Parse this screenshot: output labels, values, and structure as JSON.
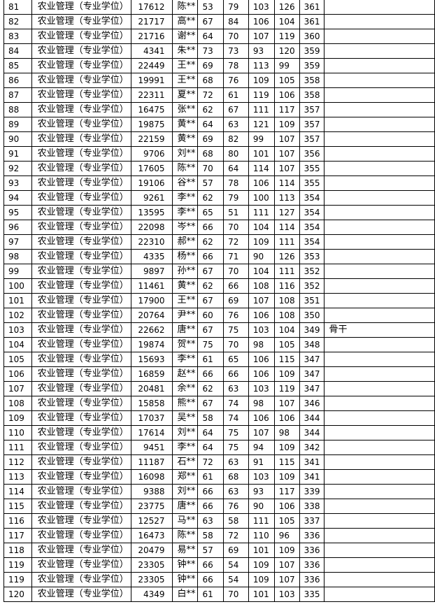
{
  "table": {
    "rows": [
      [
        "81",
        "农业管理（专业学位）",
        "17612",
        "陈**",
        "53",
        "79",
        "103",
        "126",
        "361",
        ""
      ],
      [
        "82",
        "农业管理（专业学位）",
        "21717",
        "高**",
        "67",
        "84",
        "106",
        "104",
        "361",
        ""
      ],
      [
        "83",
        "农业管理（专业学位）",
        "21716",
        "谢**",
        "64",
        "70",
        "107",
        "119",
        "360",
        ""
      ],
      [
        "84",
        "农业管理（专业学位）",
        "4341",
        "朱**",
        "73",
        "73",
        "93",
        "120",
        "359",
        ""
      ],
      [
        "85",
        "农业管理（专业学位）",
        "22449",
        "王**",
        "69",
        "78",
        "113",
        "99",
        "359",
        ""
      ],
      [
        "86",
        "农业管理（专业学位）",
        "19991",
        "王**",
        "68",
        "76",
        "109",
        "105",
        "358",
        ""
      ],
      [
        "87",
        "农业管理（专业学位）",
        "22311",
        "夏**",
        "72",
        "61",
        "119",
        "106",
        "358",
        ""
      ],
      [
        "88",
        "农业管理（专业学位）",
        "16475",
        "张**",
        "62",
        "67",
        "111",
        "117",
        "357",
        ""
      ],
      [
        "89",
        "农业管理（专业学位）",
        "19875",
        "黄**",
        "64",
        "63",
        "121",
        "109",
        "357",
        ""
      ],
      [
        "90",
        "农业管理（专业学位）",
        "22159",
        "黄**",
        "69",
        "82",
        "99",
        "107",
        "357",
        ""
      ],
      [
        "91",
        "农业管理（专业学位）",
        "9706",
        "刘**",
        "68",
        "80",
        "101",
        "107",
        "356",
        ""
      ],
      [
        "92",
        "农业管理（专业学位）",
        "17605",
        "陈**",
        "70",
        "64",
        "114",
        "107",
        "355",
        ""
      ],
      [
        "93",
        "农业管理（专业学位）",
        "19106",
        "谷**",
        "57",
        "78",
        "106",
        "114",
        "355",
        ""
      ],
      [
        "94",
        "农业管理（专业学位）",
        "9261",
        "李**",
        "62",
        "79",
        "100",
        "113",
        "354",
        ""
      ],
      [
        "95",
        "农业管理（专业学位）",
        "13595",
        "李**",
        "65",
        "51",
        "111",
        "127",
        "354",
        ""
      ],
      [
        "96",
        "农业管理（专业学位）",
        "22098",
        "岑**",
        "66",
        "70",
        "104",
        "114",
        "354",
        ""
      ],
      [
        "97",
        "农业管理（专业学位）",
        "22310",
        "郝**",
        "62",
        "72",
        "109",
        "111",
        "354",
        ""
      ],
      [
        "98",
        "农业管理（专业学位）",
        "4335",
        "杨**",
        "66",
        "71",
        "90",
        "126",
        "353",
        ""
      ],
      [
        "99",
        "农业管理（专业学位）",
        "9897",
        "孙**",
        "67",
        "70",
        "104",
        "111",
        "352",
        ""
      ],
      [
        "100",
        "农业管理（专业学位）",
        "11461",
        "黄**",
        "62",
        "66",
        "108",
        "116",
        "352",
        ""
      ],
      [
        "101",
        "农业管理（专业学位）",
        "17900",
        "王**",
        "67",
        "69",
        "107",
        "108",
        "351",
        ""
      ],
      [
        "102",
        "农业管理（专业学位）",
        "20764",
        "尹**",
        "60",
        "76",
        "106",
        "108",
        "350",
        ""
      ],
      [
        "103",
        "农业管理（专业学位）",
        "22662",
        "唐**",
        "67",
        "75",
        "103",
        "104",
        "349",
        "骨干"
      ],
      [
        "104",
        "农业管理（专业学位）",
        "19874",
        "贺**",
        "75",
        "70",
        "98",
        "105",
        "348",
        ""
      ],
      [
        "105",
        "农业管理（专业学位）",
        "15693",
        "李**",
        "61",
        "65",
        "106",
        "115",
        "347",
        ""
      ],
      [
        "106",
        "农业管理（专业学位）",
        "16859",
        "赵**",
        "66",
        "66",
        "106",
        "109",
        "347",
        ""
      ],
      [
        "107",
        "农业管理（专业学位）",
        "20481",
        "余**",
        "62",
        "63",
        "103",
        "119",
        "347",
        ""
      ],
      [
        "108",
        "农业管理（专业学位）",
        "15858",
        "熊**",
        "67",
        "74",
        "98",
        "107",
        "346",
        ""
      ],
      [
        "109",
        "农业管理（专业学位）",
        "17037",
        "吴**",
        "58",
        "74",
        "106",
        "106",
        "344",
        ""
      ],
      [
        "110",
        "农业管理（专业学位）",
        "17614",
        "刘**",
        "64",
        "75",
        "107",
        "98",
        "344",
        ""
      ],
      [
        "111",
        "农业管理（专业学位）",
        "9451",
        "李**",
        "64",
        "75",
        "94",
        "109",
        "342",
        ""
      ],
      [
        "112",
        "农业管理（专业学位）",
        "11187",
        "石**",
        "72",
        "63",
        "91",
        "115",
        "341",
        ""
      ],
      [
        "113",
        "农业管理（专业学位）",
        "16098",
        "郑**",
        "61",
        "68",
        "103",
        "109",
        "341",
        ""
      ],
      [
        "114",
        "农业管理（专业学位）",
        "9388",
        "刘**",
        "66",
        "63",
        "93",
        "117",
        "339",
        ""
      ],
      [
        "115",
        "农业管理（专业学位）",
        "23775",
        "唐**",
        "66",
        "76",
        "90",
        "106",
        "338",
        ""
      ],
      [
        "116",
        "农业管理（专业学位）",
        "12527",
        "马**",
        "63",
        "58",
        "111",
        "105",
        "337",
        ""
      ],
      [
        "117",
        "农业管理（专业学位）",
        "16473",
        "陈**",
        "58",
        "72",
        "110",
        "96",
        "336",
        ""
      ],
      [
        "118",
        "农业管理（专业学位）",
        "20479",
        "易**",
        "57",
        "69",
        "101",
        "109",
        "336",
        ""
      ],
      [
        "119",
        "农业管理（专业学位）",
        "23305",
        "钟**",
        "66",
        "54",
        "109",
        "107",
        "336",
        ""
      ],
      [
        "119",
        "农业管理（专业学位）",
        "23305",
        "钟**",
        "66",
        "54",
        "109",
        "107",
        "336",
        ""
      ],
      [
        "120",
        "农业管理（专业学位）",
        "4349",
        "白**",
        "61",
        "70",
        "101",
        "103",
        "335",
        ""
      ]
    ]
  }
}
